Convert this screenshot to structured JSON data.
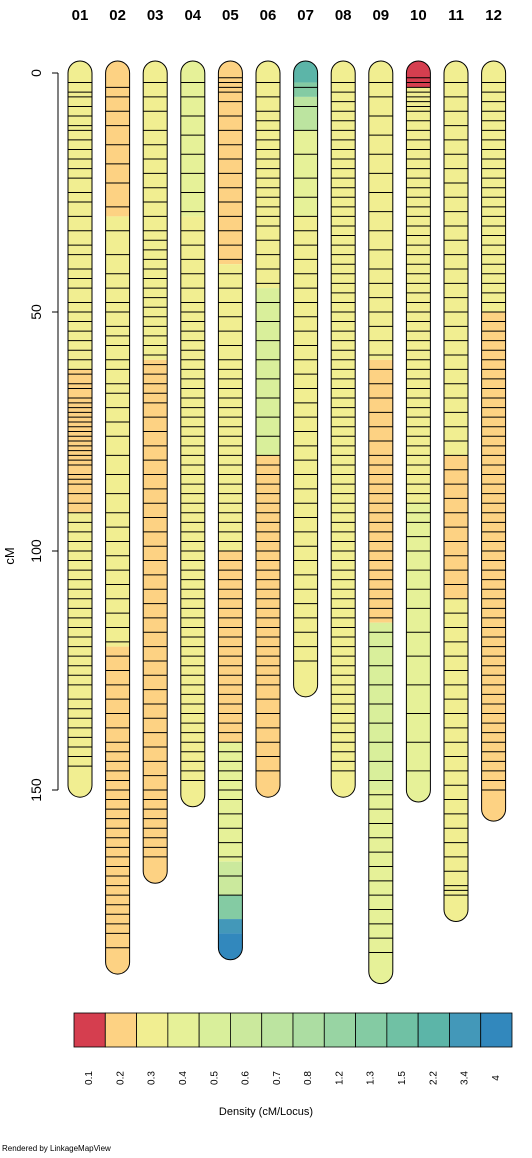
{
  "chart_data": {
    "type": "linkage-map",
    "ylabel": "cM",
    "ylim": [
      0,
      185
    ],
    "y_ticks": [
      0,
      50,
      100,
      150
    ],
    "chromosomes": [
      {
        "name": "01",
        "length": 149,
        "color_segments": [
          {
            "from": 0,
            "to": 62,
            "density": 0.3
          },
          {
            "from": 62,
            "to": 92,
            "density": 0.2
          },
          {
            "from": 92,
            "to": 149,
            "density": 0.3
          }
        ],
        "loci": [
          2,
          4,
          5,
          7,
          9,
          11,
          12,
          14,
          16,
          18,
          20,
          22,
          25,
          27,
          30,
          33,
          36,
          38,
          41,
          43,
          45,
          48,
          50,
          52,
          54,
          56,
          58,
          60,
          62,
          63,
          65,
          66,
          68,
          69,
          70,
          71,
          72,
          73,
          74,
          75,
          76,
          77,
          78,
          79,
          80,
          81,
          82,
          84,
          85,
          86,
          88,
          90,
          92,
          94,
          96,
          98,
          100,
          102,
          104,
          106,
          108,
          110,
          112,
          114,
          116,
          118,
          120,
          122,
          124,
          126,
          128,
          131,
          133,
          135,
          137,
          139,
          141,
          143,
          145
        ]
      },
      {
        "name": "02",
        "length": 186,
        "color_segments": [
          {
            "from": 0,
            "to": 30,
            "density": 0.2
          },
          {
            "from": 30,
            "to": 120,
            "density": 0.3
          },
          {
            "from": 120,
            "to": 186,
            "density": 0.2
          }
        ],
        "loci": [
          3,
          5,
          8,
          11,
          15,
          19,
          23,
          28,
          33,
          38,
          42,
          45,
          48,
          50,
          53,
          55,
          57,
          60,
          62,
          65,
          67,
          70,
          73,
          76,
          80,
          84,
          88,
          92,
          95,
          98,
          101,
          104,
          107,
          110,
          113,
          116,
          119,
          122,
          125,
          128,
          131,
          134,
          137,
          140,
          142,
          144,
          146,
          148,
          150,
          152,
          154,
          156,
          158,
          160,
          162,
          164,
          166,
          168,
          170,
          172,
          174,
          176,
          178,
          180,
          183
        ]
      },
      {
        "name": "03",
        "length": 167,
        "color_segments": [
          {
            "from": 0,
            "to": 60,
            "density": 0.3
          },
          {
            "from": 60,
            "to": 167,
            "density": 0.2
          }
        ],
        "loci": [
          2,
          5,
          8,
          12,
          15,
          18,
          21,
          24,
          27,
          30,
          33,
          35,
          37,
          39,
          41,
          43,
          45,
          47,
          49,
          51,
          53,
          55,
          57,
          59,
          61,
          63,
          65,
          67,
          69,
          72,
          75,
          78,
          81,
          84,
          87,
          90,
          93,
          96,
          99,
          102,
          105,
          108,
          111,
          114,
          117,
          120,
          123,
          126,
          129,
          132,
          135,
          138,
          141,
          144,
          147,
          150,
          152,
          154,
          156,
          158,
          160,
          162,
          164
        ]
      },
      {
        "name": "04",
        "length": 151,
        "color_segments": [
          {
            "from": 0,
            "to": 30,
            "density": 0.4
          },
          {
            "from": 30,
            "to": 151,
            "density": 0.3
          }
        ],
        "loci": [
          2,
          5,
          9,
          13,
          17,
          21,
          25,
          29,
          33,
          36,
          39,
          42,
          45,
          48,
          50,
          52,
          54,
          56,
          58,
          60,
          62,
          64,
          66,
          68,
          70,
          72,
          74,
          76,
          78,
          80,
          82,
          84,
          86,
          88,
          90,
          92,
          94,
          96,
          98,
          100,
          102,
          104,
          106,
          108,
          110,
          112,
          114,
          116,
          118,
          120,
          122,
          124,
          126,
          128,
          130,
          132,
          134,
          136,
          138,
          140,
          142,
          144,
          146,
          148
        ]
      },
      {
        "name": "05",
        "length": 183,
        "color_segments": [
          {
            "from": 0,
            "to": 40,
            "density": 0.2
          },
          {
            "from": 40,
            "to": 100,
            "density": 0.3
          },
          {
            "from": 100,
            "to": 140,
            "density": 0.2
          },
          {
            "from": 140,
            "to": 165,
            "density": 0.4
          },
          {
            "from": 165,
            "to": 172,
            "density": 0.6
          },
          {
            "from": 172,
            "to": 177,
            "density": 1.3
          },
          {
            "from": 177,
            "to": 180,
            "density": 3.4
          },
          {
            "from": 180,
            "to": 183,
            "density": 4
          }
        ],
        "loci": [
          1,
          2,
          3,
          4,
          6,
          9,
          12,
          15,
          18,
          21,
          24,
          27,
          30,
          33,
          36,
          39,
          42,
          45,
          48,
          51,
          54,
          57,
          60,
          62,
          64,
          66,
          68,
          70,
          72,
          74,
          76,
          78,
          80,
          82,
          84,
          86,
          88,
          90,
          92,
          94,
          96,
          98,
          100,
          102,
          104,
          106,
          108,
          110,
          112,
          114,
          116,
          118,
          120,
          122,
          124,
          126,
          128,
          130,
          132,
          134,
          136,
          138,
          140,
          142,
          144,
          146,
          148,
          150,
          152,
          155,
          158,
          161,
          164,
          168,
          172
        ]
      },
      {
        "name": "06",
        "length": 149,
        "color_segments": [
          {
            "from": 0,
            "to": 45,
            "density": 0.3
          },
          {
            "from": 45,
            "to": 80,
            "density": 0.5
          },
          {
            "from": 80,
            "to": 149,
            "density": 0.2
          }
        ],
        "loci": [
          2,
          5,
          8,
          10,
          12,
          14,
          16,
          18,
          20,
          22,
          24,
          26,
          28,
          30,
          32,
          35,
          38,
          41,
          44,
          48,
          52,
          56,
          60,
          64,
          68,
          72,
          76,
          80,
          82,
          84,
          86,
          88,
          90,
          92,
          94,
          96,
          98,
          100,
          102,
          104,
          106,
          108,
          110,
          112,
          114,
          116,
          118,
          120,
          122,
          124,
          126,
          128,
          131,
          134,
          137,
          140,
          143,
          146
        ]
      },
      {
        "name": "07",
        "length": 128,
        "color_segments": [
          {
            "from": 0,
            "to": 2,
            "density": 2.2
          },
          {
            "from": 2,
            "to": 5,
            "density": 1.3
          },
          {
            "from": 5,
            "to": 12,
            "density": 0.7
          },
          {
            "from": 12,
            "to": 30,
            "density": 0.4
          },
          {
            "from": 30,
            "to": 128,
            "density": 0.3
          }
        ],
        "loci": [
          3,
          7,
          12,
          17,
          22,
          26,
          30,
          33,
          36,
          39,
          42,
          45,
          48,
          51,
          54,
          57,
          60,
          63,
          66,
          69,
          72,
          75,
          78,
          81,
          84,
          87,
          90,
          93,
          96,
          99,
          102,
          105,
          108,
          111,
          114,
          117,
          120,
          123
        ]
      },
      {
        "name": "08",
        "length": 149,
        "color_segments": [
          {
            "from": 0,
            "to": 149,
            "density": 0.3
          }
        ],
        "loci": [
          2,
          4,
          6,
          8,
          10,
          12,
          14,
          16,
          18,
          20,
          22,
          24,
          26,
          28,
          30,
          32,
          34,
          36,
          38,
          40,
          42,
          44,
          46,
          48,
          50,
          52,
          54,
          56,
          58,
          60,
          62,
          64,
          66,
          68,
          70,
          72,
          74,
          76,
          78,
          80,
          82,
          84,
          86,
          88,
          90,
          92,
          94,
          96,
          98,
          100,
          102,
          104,
          106,
          108,
          110,
          112,
          114,
          116,
          118,
          120,
          122,
          124,
          126,
          128,
          130,
          132,
          134,
          136,
          138,
          140,
          142,
          144,
          146
        ]
      },
      {
        "name": "09",
        "length": 188,
        "color_segments": [
          {
            "from": 0,
            "to": 60,
            "density": 0.3
          },
          {
            "from": 60,
            "to": 115,
            "density": 0.2
          },
          {
            "from": 115,
            "to": 150,
            "density": 0.5
          },
          {
            "from": 150,
            "to": 188,
            "density": 0.4
          }
        ],
        "loci": [
          2,
          5,
          9,
          13,
          17,
          21,
          25,
          29,
          33,
          37,
          41,
          44,
          47,
          50,
          53,
          56,
          59,
          62,
          65,
          68,
          71,
          74,
          77,
          80,
          82,
          84,
          86,
          88,
          90,
          92,
          94,
          96,
          98,
          100,
          102,
          104,
          106,
          108,
          110,
          112,
          114,
          117,
          120,
          124,
          128,
          132,
          136,
          140,
          144,
          148,
          151,
          154,
          157,
          160,
          163,
          166,
          169,
          172,
          175,
          178,
          181,
          184
        ]
      },
      {
        "name": "10",
        "length": 150,
        "color_segments": [
          {
            "from": 0,
            "to": 3,
            "density": 0.1
          },
          {
            "from": 3,
            "to": 90,
            "density": 0.3
          },
          {
            "from": 90,
            "to": 150,
            "density": 0.4
          }
        ],
        "loci": [
          1,
          2,
          3,
          4,
          5,
          6,
          7,
          8,
          10,
          12,
          14,
          16,
          18,
          20,
          22,
          24,
          26,
          28,
          30,
          32,
          34,
          36,
          38,
          40,
          42,
          44,
          46,
          48,
          50,
          52,
          54,
          56,
          58,
          60,
          62,
          64,
          66,
          68,
          70,
          72,
          74,
          76,
          78,
          80,
          82,
          84,
          86,
          88,
          90,
          92,
          94,
          97,
          100,
          104,
          108,
          112,
          117,
          122,
          128,
          134,
          140,
          146
        ]
      },
      {
        "name": "11",
        "length": 175,
        "color_segments": [
          {
            "from": 0,
            "to": 80,
            "density": 0.3
          },
          {
            "from": 80,
            "to": 110,
            "density": 0.2
          },
          {
            "from": 110,
            "to": 175,
            "density": 0.3
          }
        ],
        "loci": [
          2,
          5,
          8,
          11,
          14,
          17,
          20,
          23,
          26,
          29,
          32,
          35,
          38,
          41,
          44,
          47,
          50,
          53,
          56,
          59,
          62,
          65,
          68,
          71,
          74,
          77,
          80,
          83,
          86,
          89,
          92,
          95,
          98,
          101,
          104,
          107,
          110,
          113,
          116,
          119,
          122,
          125,
          128,
          131,
          134,
          137,
          140,
          143,
          146,
          149,
          152,
          155,
          158,
          161,
          164,
          167,
          170,
          171,
          172
        ]
      },
      {
        "name": "12",
        "length": 154,
        "color_segments": [
          {
            "from": 0,
            "to": 50,
            "density": 0.3
          },
          {
            "from": 50,
            "to": 154,
            "density": 0.2
          }
        ],
        "loci": [
          2,
          4,
          6,
          8,
          10,
          12,
          14,
          16,
          18,
          20,
          22,
          24,
          26,
          28,
          30,
          32,
          34,
          36,
          38,
          40,
          42,
          44,
          46,
          48,
          50,
          52,
          54,
          56,
          58,
          60,
          62,
          64,
          66,
          68,
          70,
          72,
          74,
          76,
          78,
          80,
          82,
          84,
          86,
          88,
          90,
          92,
          94,
          96,
          98,
          100,
          102,
          104,
          106,
          108,
          110,
          112,
          114,
          116,
          118,
          120,
          122,
          124,
          126,
          128,
          130,
          132,
          134,
          136,
          138,
          140,
          142,
          144,
          146,
          148,
          150
        ]
      }
    ],
    "legend": {
      "title": "Density (cM/Locus)",
      "placement": "bottom",
      "entries": [
        {
          "label": "0.1",
          "value": 0.1,
          "color": "#d53e4f"
        },
        {
          "label": "0.2",
          "value": 0.2,
          "color": "#fdd283"
        },
        {
          "label": "0.3",
          "value": 0.3,
          "color": "#f1ee91"
        },
        {
          "label": "0.4",
          "value": 0.4,
          "color": "#e6f198"
        },
        {
          "label": "0.5",
          "value": 0.5,
          "color": "#d9ef9b"
        },
        {
          "label": "0.6",
          "value": 0.6,
          "color": "#cbe99d"
        },
        {
          "label": "0.7",
          "value": 0.7,
          "color": "#bce4a0"
        },
        {
          "label": "0.8",
          "value": 0.8,
          "color": "#acdda2"
        },
        {
          "label": "1.2",
          "value": 1.2,
          "color": "#98d4a3"
        },
        {
          "label": "1.3",
          "value": 1.3,
          "color": "#84cba3"
        },
        {
          "label": "1.5",
          "value": 1.5,
          "color": "#70c1a4"
        },
        {
          "label": "2.2",
          "value": 2.2,
          "color": "#5cb5a8"
        },
        {
          "label": "3.4",
          "value": 3.4,
          "color": "#4398b9"
        },
        {
          "label": "4",
          "value": 4,
          "color": "#3288bd"
        }
      ]
    }
  },
  "footer": "Rendered by LinkageMapView"
}
